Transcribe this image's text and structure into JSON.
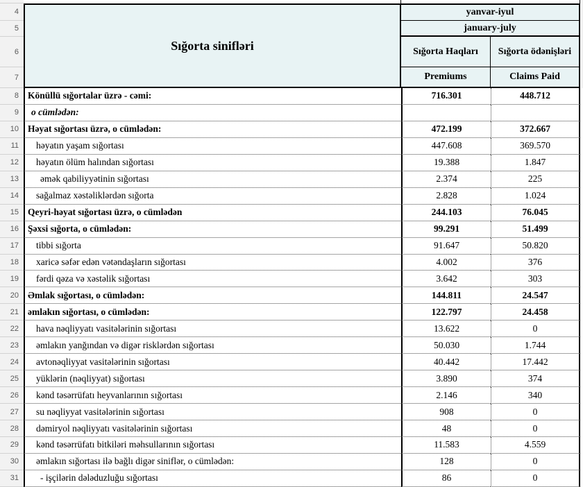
{
  "colors": {
    "header_bg": "#e8f3f4",
    "gutter_bg": "#f2f2f2",
    "grid_dark": "#000000",
    "grid_dotted": "#4a4a4a"
  },
  "header": {
    "classes_title": "Sığorta sinifləri",
    "period_az": "yanvar-iyul",
    "period_en": "january-july",
    "premiums_az": "Sığorta Haqları",
    "claims_az": "Sığorta ödənişləri",
    "premiums_en": "Premiums",
    "claims_en": "Claims Paid",
    "row_numbers": [
      "4",
      "5",
      "6",
      "7"
    ]
  },
  "rows": [
    {
      "num": "8",
      "label": "Könüllü sığortalar üzrə - cəmi:",
      "premiums": "716.301",
      "claims": "448.712",
      "style": "bold",
      "indent": 0
    },
    {
      "num": "9",
      "label": "o cümlədən:",
      "premiums": "",
      "claims": "",
      "style": "bold-italic",
      "indent": 1
    },
    {
      "num": "10",
      "label": "Həyat sığortası üzrə, o cümlədən:",
      "premiums": "472.199",
      "claims": "372.667",
      "style": "bold",
      "indent": 0
    },
    {
      "num": "11",
      "label": "həyatın yaşam sığortası",
      "premiums": "447.608",
      "claims": "369.570",
      "style": "normal",
      "indent": 2
    },
    {
      "num": "12",
      "label": "həyatın ölüm halından sığortası",
      "premiums": "19.388",
      "claims": "1.847",
      "style": "normal",
      "indent": 2
    },
    {
      "num": "13",
      "label": "əmək qabiliyyətinin sığortası",
      "premiums": "2.374",
      "claims": "225",
      "style": "normal",
      "indent": 3
    },
    {
      "num": "14",
      "label": "sağalmaz xəstəliklərdən sığorta",
      "premiums": "2.828",
      "claims": "1.024",
      "style": "normal",
      "indent": 2
    },
    {
      "num": "15",
      "label": "Qeyri-həyat sığortası üzrə, o cümlədən",
      "premiums": "244.103",
      "claims": "76.045",
      "style": "bold",
      "indent": 0
    },
    {
      "num": "16",
      "label": "Şəxsi sığorta,  o cümlədən:",
      "premiums": "99.291",
      "claims": "51.499",
      "style": "bold",
      "indent": 0
    },
    {
      "num": "17",
      "label": "tibbi sığorta",
      "premiums": "91.647",
      "claims": "50.820",
      "style": "normal",
      "indent": 2
    },
    {
      "num": "18",
      "label": "xaricə səfər edən vətəndaşların sığortası",
      "premiums": "4.002",
      "claims": "376",
      "style": "normal",
      "indent": 2
    },
    {
      "num": "19",
      "label": "fərdi qəza və xəstəlik sığortası",
      "premiums": "3.642",
      "claims": "303",
      "style": "normal",
      "indent": 2
    },
    {
      "num": "20",
      "label": "Əmlak sığortası, o cümlədən:",
      "premiums": "144.811",
      "claims": "24.547",
      "style": "bold",
      "indent": 0
    },
    {
      "num": "21",
      "label": "əmlakın sığortası,  o cümlədən:",
      "premiums": "122.797",
      "claims": "24.458",
      "style": "bold",
      "indent": 0
    },
    {
      "num": "22",
      "label": "hava nəqliyyatı vasitələrinin sığortası",
      "premiums": "13.622",
      "claims": "0",
      "style": "normal",
      "indent": 2
    },
    {
      "num": "23",
      "label": "əmlakın yanğından və digər risklərdən sığortası",
      "premiums": "50.030",
      "claims": "1.744",
      "style": "normal",
      "indent": 2
    },
    {
      "num": "24",
      "label": "avtonəqliyyat vasitələrinin sığortası",
      "premiums": "40.442",
      "claims": "17.442",
      "style": "normal",
      "indent": 2
    },
    {
      "num": "25",
      "label": "yüklərin (nəqliyyat) sığortası",
      "premiums": "3.890",
      "claims": "374",
      "style": "normal",
      "indent": 2
    },
    {
      "num": "26",
      "label": "kənd təsərrüfatı heyvanlarının sığortası",
      "premiums": "2.146",
      "claims": "340",
      "style": "normal",
      "indent": 2
    },
    {
      "num": "27",
      "label": "su nəqliyyat vasitələrinin sığortası",
      "premiums": "908",
      "claims": "0",
      "style": "normal",
      "indent": 2
    },
    {
      "num": "28",
      "label": "dəmiryol nəqliyyatı vasitələrinin sığortası",
      "premiums": "48",
      "claims": "0",
      "style": "normal",
      "indent": 2
    },
    {
      "num": "29",
      "label": "kənd təsərrüfatı bitkiləri məhsullarının sığortası",
      "premiums": "11.583",
      "claims": "4.559",
      "style": "normal",
      "indent": 2
    },
    {
      "num": "30",
      "label": "əmlakın sığortası ilə bağlı digər siniflər,  o cümlədən:",
      "premiums": "128",
      "claims": "0",
      "style": "normal",
      "indent": 2
    },
    {
      "num": "31",
      "label": "- işçilərin dələduzluğu sığortası",
      "premiums": "86",
      "claims": "0",
      "style": "normal",
      "indent": 3
    }
  ]
}
